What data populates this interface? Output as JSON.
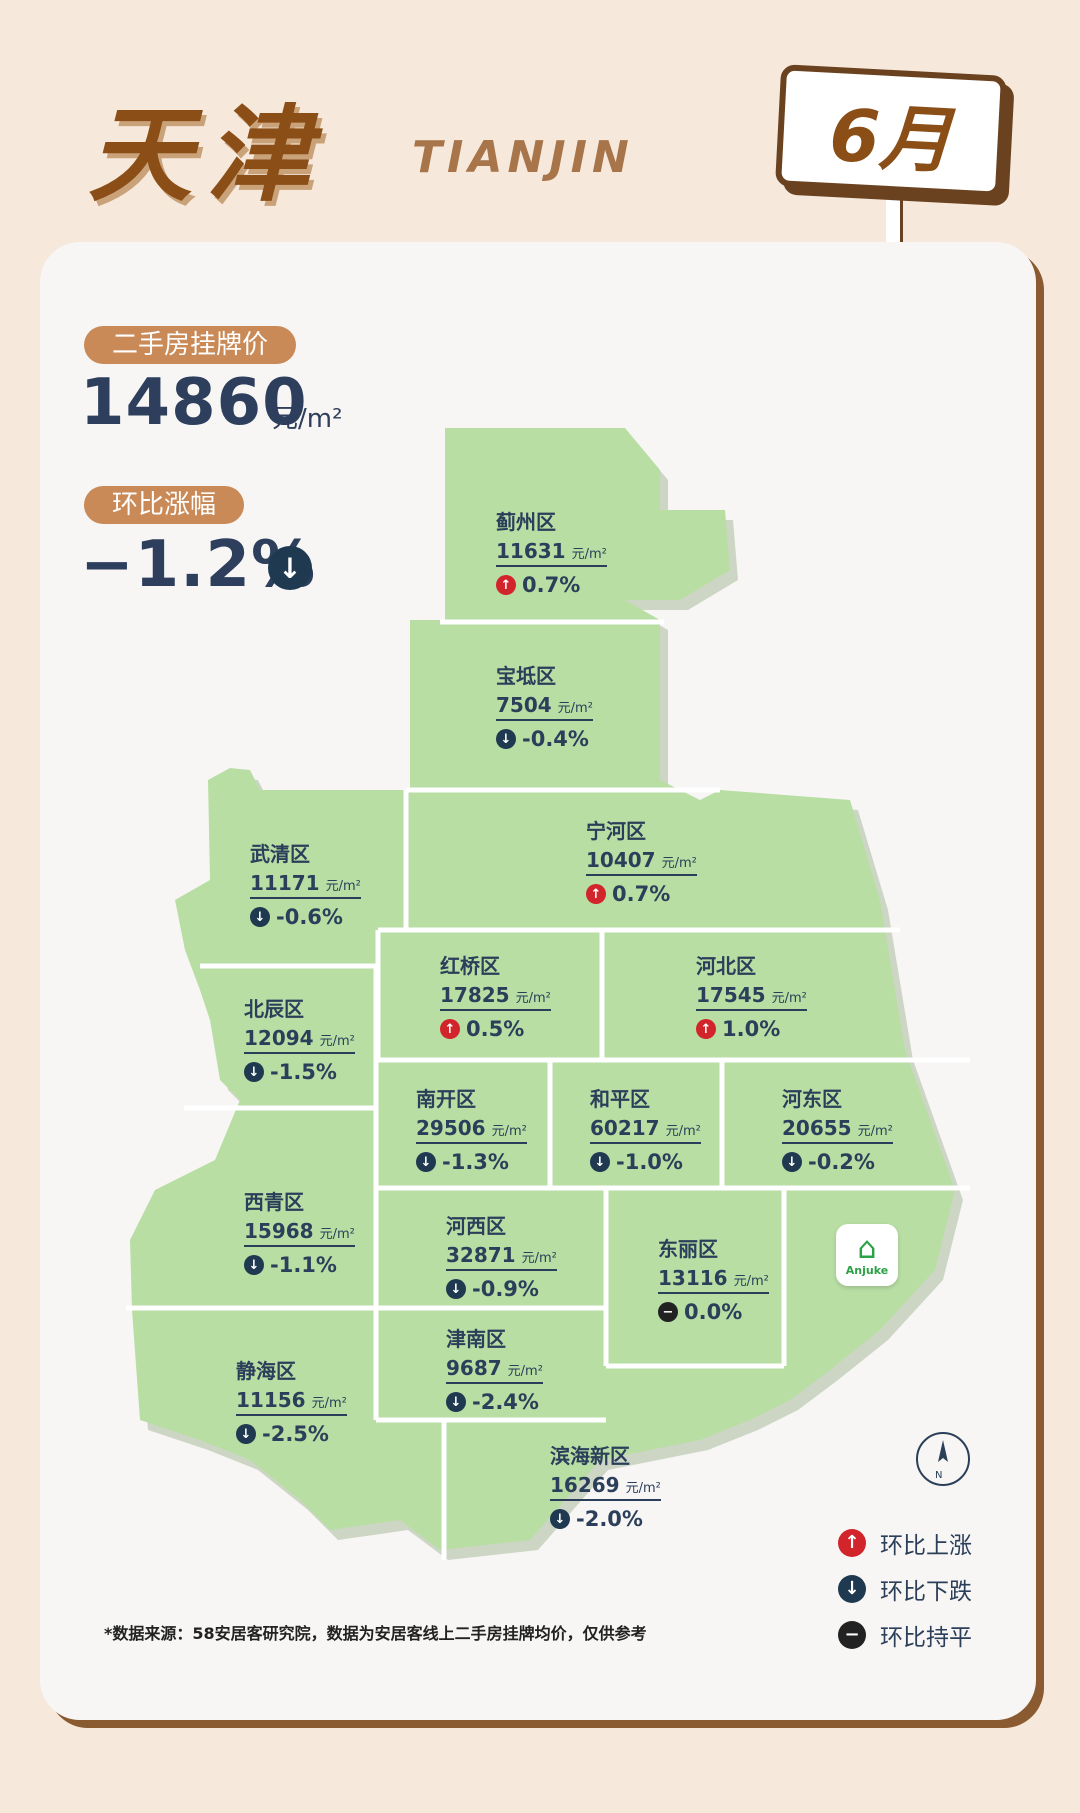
{
  "header": {
    "city_cn": "天津",
    "city_en": "TIANJIN",
    "month": "6月"
  },
  "summary": {
    "price_label": "二手房挂牌价",
    "price_value": "14860",
    "price_unit": "元/m²",
    "change_label": "环比涨幅",
    "change_value": "−1.2%",
    "change_direction": "down"
  },
  "districts": [
    {
      "name": "蓟州区",
      "price": "11631",
      "unit": "元/m²",
      "change": "0.7%",
      "direction": "up"
    },
    {
      "name": "宝坻区",
      "price": "7504",
      "unit": "元/m²",
      "change": "-0.4%",
      "direction": "down"
    },
    {
      "name": "武清区",
      "price": "11171",
      "unit": "元/m²",
      "change": "-0.6%",
      "direction": "down"
    },
    {
      "name": "宁河区",
      "price": "10407",
      "unit": "元/m²",
      "change": "0.7%",
      "direction": "up"
    },
    {
      "name": "红桥区",
      "price": "17825",
      "unit": "元/m²",
      "change": "0.5%",
      "direction": "up"
    },
    {
      "name": "河北区",
      "price": "17545",
      "unit": "元/m²",
      "change": "1.0%",
      "direction": "up"
    },
    {
      "name": "北辰区",
      "price": "12094",
      "unit": "元/m²",
      "change": "-1.5%",
      "direction": "down"
    },
    {
      "name": "南开区",
      "price": "29506",
      "unit": "元/m²",
      "change": "-1.3%",
      "direction": "down"
    },
    {
      "name": "和平区",
      "price": "60217",
      "unit": "元/m²",
      "change": "-1.0%",
      "direction": "down"
    },
    {
      "name": "河东区",
      "price": "20655",
      "unit": "元/m²",
      "change": "-0.2%",
      "direction": "down"
    },
    {
      "name": "西青区",
      "price": "15968",
      "unit": "元/m²",
      "change": "-1.1%",
      "direction": "down"
    },
    {
      "name": "河西区",
      "price": "32871",
      "unit": "元/m²",
      "change": "-0.9%",
      "direction": "down"
    },
    {
      "name": "东丽区",
      "price": "13116",
      "unit": "元/m²",
      "change": "0.0%",
      "direction": "flat"
    },
    {
      "name": "津南区",
      "price": "9687",
      "unit": "元/m²",
      "change": "-2.4%",
      "direction": "down"
    },
    {
      "name": "静海区",
      "price": "11156",
      "unit": "元/m²",
      "change": "-2.5%",
      "direction": "down"
    },
    {
      "name": "滨海新区",
      "price": "16269",
      "unit": "元/m²",
      "change": "-2.0%",
      "direction": "down"
    }
  ],
  "legend": {
    "up": "环比上涨",
    "down": "环比下跌",
    "flat": "环比持平"
  },
  "logo": {
    "name": "Anjuke"
  },
  "compass": {
    "letter": "N"
  },
  "footnote": "*数据来源：58安居客研究院，数据为安居客线上二手房挂牌均价，仅供参考",
  "colors": {
    "map_fill": "#b8dea4",
    "map_shadow": "#cdd6c5",
    "accent": "#c98a58",
    "up": "#d2242b",
    "down": "#1e3950"
  }
}
